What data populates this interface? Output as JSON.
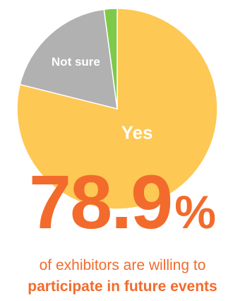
{
  "chart_data": {
    "type": "pie",
    "slices": [
      {
        "label": "Yes",
        "value": 78.9,
        "color": "#fdc853"
      },
      {
        "label": "Not sure",
        "value": 19.0,
        "color": "#b1b1b1"
      },
      {
        "label": "",
        "value": 2.1,
        "color": "#7ec94a"
      }
    ],
    "start": "12 o'clock",
    "direction": "clockwise"
  },
  "highlight": {
    "number": "78.9",
    "unit": "%"
  },
  "caption": {
    "line1": "of exhibitors are willing to",
    "line2": "participate in future events"
  }
}
